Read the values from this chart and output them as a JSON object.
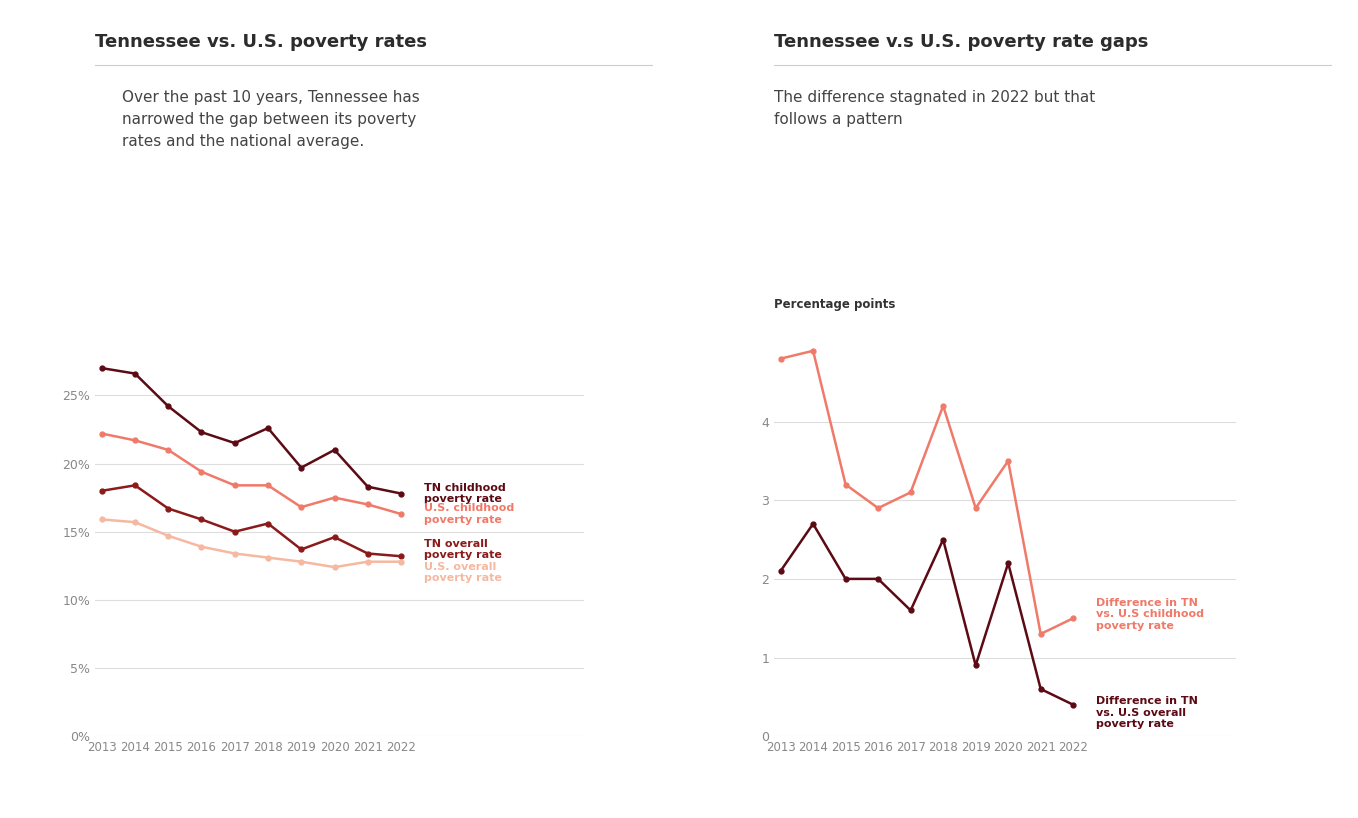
{
  "years": [
    2013,
    2014,
    2015,
    2016,
    2017,
    2018,
    2019,
    2020,
    2021,
    2022
  ],
  "tn_childhood": [
    27.0,
    26.6,
    24.2,
    22.3,
    21.5,
    22.6,
    19.7,
    21.0,
    18.3,
    17.8
  ],
  "us_childhood": [
    22.2,
    21.7,
    21.0,
    19.4,
    18.4,
    18.4,
    16.8,
    17.5,
    17.0,
    16.3
  ],
  "tn_overall": [
    18.0,
    18.4,
    16.7,
    15.9,
    15.0,
    15.6,
    13.7,
    14.6,
    13.4,
    13.2
  ],
  "us_overall": [
    15.9,
    15.7,
    14.7,
    13.9,
    13.4,
    13.1,
    12.8,
    12.4,
    12.8,
    12.8
  ],
  "diff_childhood": [
    4.8,
    4.9,
    3.2,
    2.9,
    3.1,
    4.2,
    2.9,
    3.5,
    1.3,
    1.5
  ],
  "diff_overall": [
    2.1,
    2.7,
    2.0,
    2.0,
    1.6,
    2.5,
    0.9,
    2.2,
    0.6,
    0.4
  ],
  "color_tn_childhood": "#5C0A14",
  "color_us_childhood": "#F07A6A",
  "color_tn_overall": "#8B1A1A",
  "color_us_overall": "#F5B8A0",
  "color_diff_childhood": "#F07A6A",
  "color_diff_overall": "#5C0A14",
  "title_left": "Tennessee vs. U.S. poverty rates",
  "title_right": "Tennessee v.s U.S. poverty rate gaps",
  "subtitle_left": "Over the past 10 years, Tennessee has\nnarrowed the gap between its poverty\nrates and the national average.",
  "subtitle_right": "The difference stagnated in 2022 but that\nfollows a pattern",
  "ylabel_right": "Percentage points",
  "legend_tn_childhood": "TN childhood\npoverty rate",
  "legend_us_childhood": "U.S. childhood\npoverty rate",
  "legend_tn_overall": "TN overall\npoverty rate",
  "legend_us_overall": "U.S. overall\npoverty rate",
  "legend_diff_childhood": "Difference in TN\nvs. U.S childhood\npoverty rate",
  "legend_diff_overall": "Difference in TN\nvs. U.S overall\npoverty rate",
  "background_color": "#FFFFFF",
  "grid_color": "#DDDDDD",
  "title_color": "#2C2C2C",
  "subtitle_color": "#444444",
  "tick_color": "#888888"
}
